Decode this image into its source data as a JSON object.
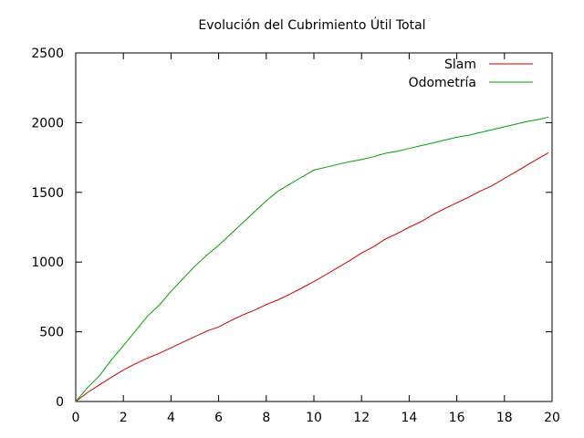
{
  "chart_data": {
    "type": "line",
    "title": "Evolución del Cubrimiento Útil Total",
    "xlabel": "",
    "ylabel": "",
    "xlim": [
      0,
      20
    ],
    "ylim": [
      0,
      2500
    ],
    "x_ticks": [
      0,
      2,
      4,
      6,
      8,
      10,
      12,
      14,
      16,
      18,
      20
    ],
    "y_ticks": [
      0,
      500,
      1000,
      1500,
      2000,
      2500
    ],
    "grid": false,
    "legend_position": "top-right",
    "series": [
      {
        "name": "Slam",
        "color": "#cc0000",
        "x": [
          0,
          0.5,
          1,
          1.5,
          2,
          2.5,
          3,
          3.5,
          4,
          4.5,
          5,
          5.5,
          6,
          6.5,
          7,
          7.5,
          8,
          8.5,
          9,
          9.5,
          10,
          10.5,
          11,
          11.5,
          12,
          12.5,
          13,
          13.5,
          14,
          14.5,
          15,
          15.5,
          16,
          16.5,
          17,
          17.5,
          18,
          18.5,
          19,
          19.5,
          19.85
        ],
        "y": [
          0,
          65,
          120,
          175,
          225,
          270,
          310,
          345,
          385,
          425,
          465,
          505,
          535,
          580,
          620,
          655,
          695,
          730,
          770,
          815,
          860,
          910,
          960,
          1010,
          1065,
          1110,
          1165,
          1205,
          1250,
          1290,
          1340,
          1385,
          1425,
          1465,
          1510,
          1550,
          1600,
          1650,
          1700,
          1750,
          1785
        ]
      },
      {
        "name": "Odometría",
        "color": "#00a000",
        "x": [
          0,
          0.5,
          1,
          1.5,
          2,
          2.5,
          3,
          3.5,
          4,
          4.5,
          5,
          5.5,
          6,
          6.5,
          7,
          7.5,
          8,
          8.5,
          9,
          9.5,
          10,
          10.5,
          11,
          11.5,
          12,
          12.5,
          13,
          13.5,
          14,
          14.5,
          15,
          15.5,
          16,
          16.5,
          17,
          17.5,
          18,
          18.5,
          19,
          19.5,
          19.85
        ],
        "y": [
          0,
          100,
          185,
          300,
          400,
          505,
          610,
          690,
          790,
          880,
          970,
          1050,
          1120,
          1200,
          1280,
          1360,
          1440,
          1510,
          1560,
          1610,
          1660,
          1680,
          1700,
          1720,
          1735,
          1755,
          1780,
          1795,
          1815,
          1835,
          1855,
          1875,
          1895,
          1910,
          1930,
          1950,
          1970,
          1990,
          2010,
          2025,
          2040
        ]
      }
    ]
  }
}
